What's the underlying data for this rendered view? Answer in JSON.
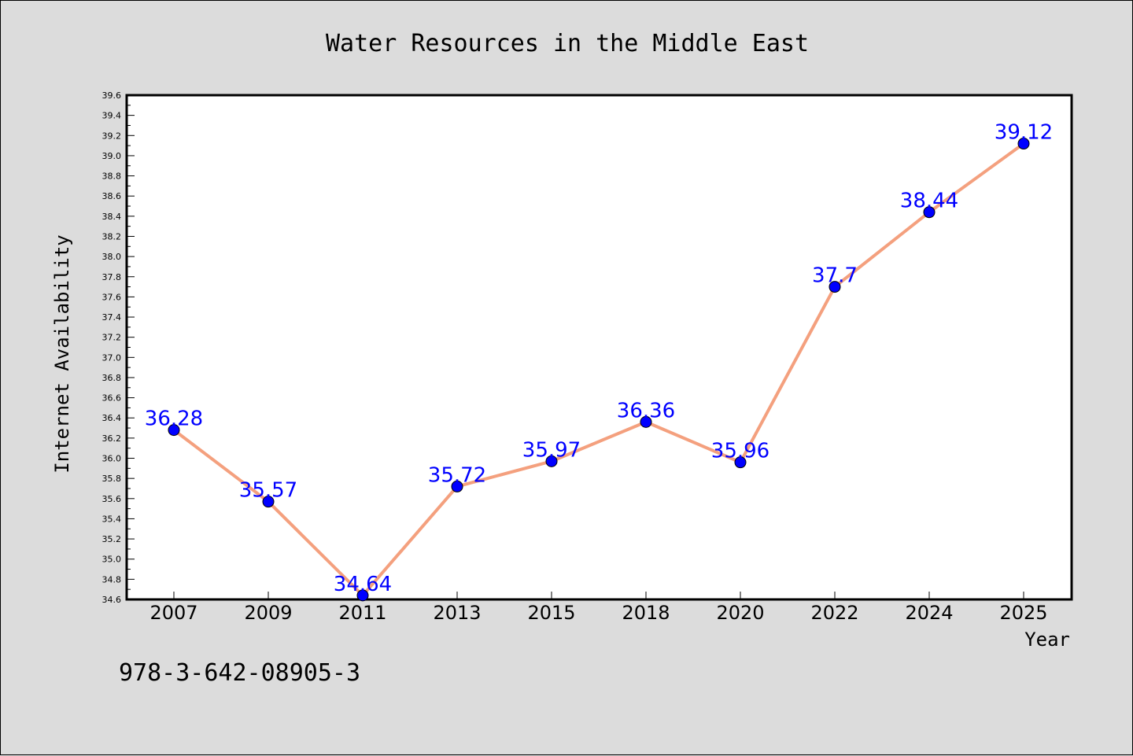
{
  "chart_data": {
    "type": "line",
    "title": "Water Resources in the Middle East",
    "xlabel": "Year",
    "ylabel": "Internet Availability",
    "categories": [
      "2007",
      "2009",
      "2011",
      "2013",
      "2015",
      "2018",
      "2020",
      "2022",
      "2024",
      "2025"
    ],
    "values": [
      36.28,
      35.57,
      34.64,
      35.72,
      35.97,
      36.36,
      35.96,
      37.7,
      38.44,
      39.12
    ],
    "data_labels": [
      "36.28",
      "35.57",
      "34.64",
      "35.72",
      "35.97",
      "36.36",
      "35.96",
      "37.7",
      "38.44",
      "39.12"
    ],
    "ylim": [
      34.6,
      39.6
    ],
    "ytick_step": 0.2,
    "grid": false,
    "line_color": "#f4a07e",
    "marker_color": "#0000ff",
    "label_color": "#0000ff",
    "background_color": "#dcdcdc",
    "plot_background_color": "#ffffff"
  },
  "footnote": "978-3-642-08905-3"
}
